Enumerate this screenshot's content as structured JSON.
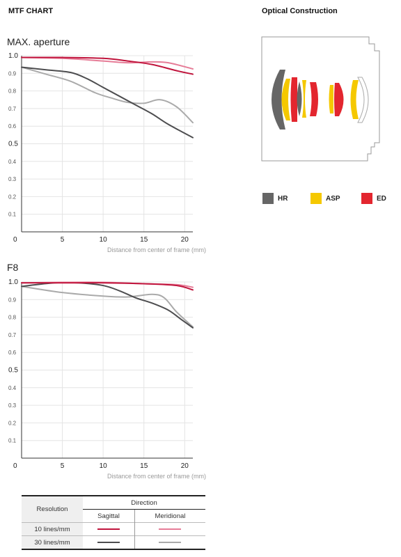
{
  "headers": {
    "mtf_chart": "MTF CHART",
    "optical_construction": "Optical Construction"
  },
  "colors": {
    "sagittal_10": "#c0143c",
    "meridional_10": "#e67c97",
    "sagittal_30": "#4d4d4f",
    "meridional_30": "#aaaaaa",
    "HR": "#666666",
    "ASP": "#f5c800",
    "ED": "#e3262f"
  },
  "chart_data": [
    {
      "type": "line",
      "title": "MAX. aperture",
      "xlabel": "Distance from center of frame (mm)",
      "ylabel": "",
      "xlim": [
        0,
        21
      ],
      "ylim": [
        0,
        1.0
      ],
      "xticks": [
        "5",
        "10",
        "15",
        "20"
      ],
      "xticks_zero": "0",
      "yticks": [
        "1.0",
        "0.9",
        "0.8",
        "0.7",
        "0.6",
        "0.5",
        "0.4",
        "0.3",
        "0.2",
        "0.1"
      ],
      "series": [
        {
          "key": "sagittal_10",
          "x": [
            0,
            5,
            10,
            13,
            16,
            19,
            21
          ],
          "y": [
            0.99,
            0.99,
            0.985,
            0.97,
            0.95,
            0.915,
            0.895
          ]
        },
        {
          "key": "meridional_10",
          "x": [
            0,
            5,
            10,
            13,
            16,
            18,
            21
          ],
          "y": [
            0.99,
            0.985,
            0.97,
            0.96,
            0.965,
            0.96,
            0.925
          ]
        },
        {
          "key": "sagittal_30",
          "x": [
            0,
            3,
            6,
            8,
            10,
            12,
            14,
            16,
            18,
            21
          ],
          "y": [
            0.935,
            0.92,
            0.905,
            0.87,
            0.82,
            0.77,
            0.72,
            0.67,
            0.61,
            0.535
          ]
        },
        {
          "key": "meridional_30",
          "x": [
            0,
            3,
            6,
            9,
            11,
            13,
            15,
            17,
            19,
            21
          ],
          "y": [
            0.935,
            0.895,
            0.855,
            0.79,
            0.76,
            0.735,
            0.73,
            0.75,
            0.71,
            0.62
          ]
        }
      ]
    },
    {
      "type": "line",
      "title": "F8",
      "xlabel": "Distance from center of frame (mm)",
      "ylabel": "",
      "xlim": [
        0,
        21
      ],
      "ylim": [
        0,
        1.0
      ],
      "xticks": [
        "5",
        "10",
        "15",
        "20"
      ],
      "xticks_zero": "0",
      "yticks": [
        "1.0",
        "0.9",
        "0.8",
        "0.7",
        "0.6",
        "0.5",
        "0.4",
        "0.3",
        "0.2",
        "0.1"
      ],
      "series": [
        {
          "key": "sagittal_10",
          "x": [
            0,
            5,
            10,
            15,
            19,
            21
          ],
          "y": [
            0.995,
            0.995,
            0.995,
            0.99,
            0.98,
            0.955
          ]
        },
        {
          "key": "meridional_10",
          "x": [
            0,
            5,
            10,
            15,
            19,
            21
          ],
          "y": [
            0.995,
            0.998,
            0.998,
            0.99,
            0.985,
            0.97
          ]
        },
        {
          "key": "sagittal_30",
          "x": [
            0,
            4,
            7,
            10,
            12,
            14,
            16,
            18,
            19.5,
            21
          ],
          "y": [
            0.975,
            0.995,
            0.995,
            0.98,
            0.95,
            0.91,
            0.88,
            0.84,
            0.79,
            0.74
          ]
        },
        {
          "key": "meridional_30",
          "x": [
            0,
            5,
            10,
            13,
            16,
            17.5,
            19,
            21
          ],
          "y": [
            0.975,
            0.94,
            0.92,
            0.915,
            0.93,
            0.91,
            0.83,
            0.745
          ]
        }
      ]
    }
  ],
  "legend": {
    "items": [
      {
        "label": "HR",
        "color_key": "HR"
      },
      {
        "label": "ASP",
        "color_key": "ASP"
      },
      {
        "label": "ED",
        "color_key": "ED"
      }
    ]
  },
  "table": {
    "resolution": "Resolution",
    "direction": "Direction",
    "sagittal": "Sagittal",
    "meridional": "Meridional",
    "rows": [
      {
        "label": "10 lines/mm",
        "sag_key": "sagittal_10",
        "mer_key": "meridional_10"
      },
      {
        "label": "30 lines/mm",
        "sag_key": "sagittal_30",
        "mer_key": "meridional_30"
      }
    ]
  }
}
